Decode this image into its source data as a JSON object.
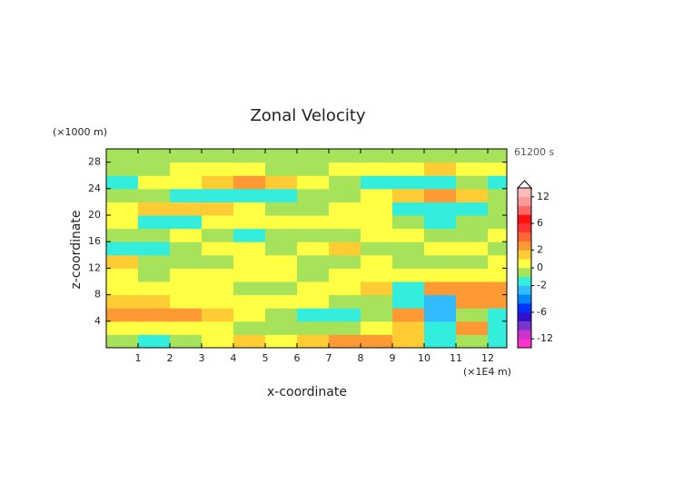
{
  "chart_data": {
    "type": "contour",
    "title": "Zonal Velocity",
    "y_unit": "(×1000 m)",
    "x_unit": "(×1E4 m)",
    "time_label": "61200 s",
    "x_label": "x-coordinate",
    "y_label": "z-coordinate",
    "xlim": [
      0,
      12.6
    ],
    "ylim": [
      0,
      30
    ],
    "xticks": [
      1,
      2,
      3,
      4,
      5,
      6,
      7,
      8,
      9,
      10,
      11,
      12
    ],
    "yticks": [
      4,
      8,
      12,
      16,
      20,
      24,
      28
    ],
    "x": [
      0.5,
      1.5,
      2.5,
      3.5,
      4.5,
      5.5,
      6.5,
      7.5,
      8.5,
      9.5,
      10.5,
      11.5,
      12.5
    ],
    "y": [
      1,
      3,
      5,
      7,
      9,
      11,
      13,
      15,
      17,
      19,
      21,
      23,
      25,
      27,
      29
    ],
    "z": [
      [
        -1,
        -1.5,
        -0.5,
        0.5,
        1.5,
        0.5,
        1.5,
        2.5,
        2.5,
        1.5,
        -2,
        -1,
        -1.5
      ],
      [
        0.5,
        0.5,
        0.5,
        0.5,
        -0.5,
        -0.5,
        -0.5,
        -0.5,
        0.5,
        1.5,
        -2,
        2.5,
        -2
      ],
      [
        2.5,
        2.5,
        2.5,
        1.5,
        0.5,
        -0.5,
        -1.5,
        -1.5,
        -0.5,
        2.5,
        -3,
        -1,
        -2
      ],
      [
        1.5,
        1.5,
        0.5,
        0.5,
        0.5,
        0.5,
        0.5,
        -0.5,
        -0.5,
        -2,
        -3,
        2.5,
        2.5
      ],
      [
        0.5,
        0.5,
        0.5,
        0.5,
        -0.5,
        -0.5,
        0.5,
        0.5,
        1.5,
        -2,
        2.5,
        2.5,
        2.5
      ],
      [
        0.5,
        -0.5,
        0.5,
        0.5,
        0.5,
        0.5,
        -0.5,
        0.5,
        0.5,
        0.5,
        0.5,
        0.5,
        0.5
      ],
      [
        1.5,
        -0.5,
        -0.5,
        -0.5,
        0.5,
        0.5,
        -0.5,
        -0.5,
        0.5,
        -0.5,
        -0.5,
        -0.5,
        0.5
      ],
      [
        -1.5,
        -1.5,
        -0.5,
        0.5,
        0.5,
        -0.5,
        0.5,
        1.5,
        -0.5,
        -0.5,
        0.5,
        0.5,
        -0.5
      ],
      [
        -0.5,
        -0.5,
        0.5,
        -0.5,
        -1.5,
        -0.5,
        -0.5,
        -0.5,
        0.5,
        0.5,
        -0.5,
        -0.5,
        0.5
      ],
      [
        0.5,
        -1.5,
        -2,
        0.5,
        0.5,
        0.5,
        0.5,
        0.5,
        0.5,
        -0.5,
        -1.5,
        -0.5,
        -0.5
      ],
      [
        0.5,
        1.5,
        1.5,
        1.5,
        0.5,
        -0.5,
        -0.5,
        0.5,
        0.5,
        -1.5,
        -1.5,
        -1.5,
        -0.5
      ],
      [
        -0.5,
        -0.5,
        -1.5,
        -1.5,
        -2,
        -1.5,
        -0.5,
        -0.5,
        0.5,
        1.5,
        2.5,
        1.5,
        -0.5
      ],
      [
        -1.5,
        0.5,
        0.5,
        1.5,
        2.5,
        1.5,
        0.5,
        -0.5,
        -1.5,
        -1.5,
        -2,
        -0.5,
        -1.5
      ],
      [
        -0.5,
        -0.5,
        0.5,
        0.5,
        0.5,
        -0.5,
        -0.5,
        0.5,
        0.5,
        0.5,
        1.5,
        0.5,
        0.5
      ],
      [
        -0.5,
        -0.5,
        -0.5,
        -0.5,
        -0.5,
        -0.5,
        -0.5,
        -0.5,
        -0.5,
        -0.5,
        -0.5,
        -0.5,
        -0.5
      ]
    ],
    "levels": [
      -14,
      -12,
      -10,
      -8,
      -6,
      -4,
      -3,
      -2,
      -1,
      0,
      1,
      2,
      3,
      4,
      6,
      8,
      10,
      12,
      14
    ],
    "colors": [
      "#ff33cc",
      "#cc33cc",
      "#7a33cc",
      "#3311cc",
      "#0033ff",
      "#0088ff",
      "#33bbff",
      "#33eedd",
      "#a6e35a",
      "#ffff44",
      "#ffcc33",
      "#ff9933",
      "#ff6633",
      "#ff3333",
      "#ff1111",
      "#ff6666",
      "#ff9999",
      "#ffbbbb"
    ],
    "colorbar_ticks": [
      12,
      6,
      2,
      0,
      -2,
      -6,
      -12
    ]
  }
}
